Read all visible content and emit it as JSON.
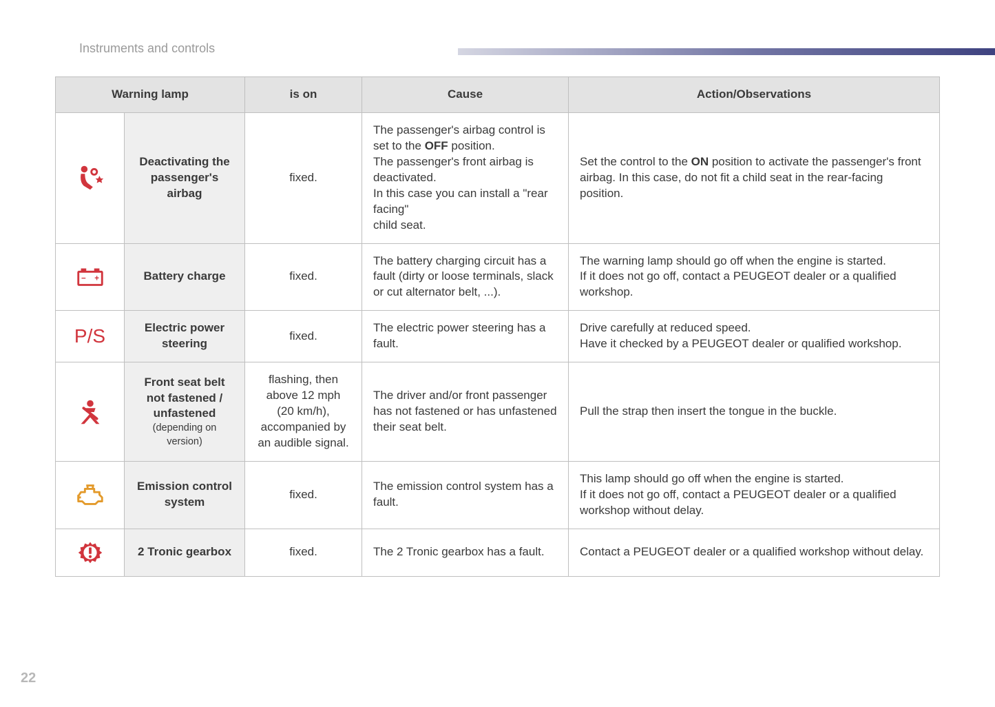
{
  "section_title": "Instruments and controls",
  "page_number": "22",
  "colors": {
    "section_title": "#9a9a9a",
    "border": "#bfbfbf",
    "header_bg": "#e3e3e3",
    "name_bg": "#efefef",
    "text": "#3a3a3a",
    "lamp_red": "#d1353d",
    "lamp_amber": "#e39a2b",
    "stripe_start": "#d5d6e2",
    "stripe_mid": "#7275a4",
    "stripe_end": "#3f4380",
    "page_num": "#b8b8b8"
  },
  "table": {
    "headers": {
      "warning_lamp": "Warning lamp",
      "is_on": "is on",
      "cause": "Cause",
      "action": "Action/Observations"
    },
    "rows": [
      {
        "icon": "airbag-off",
        "icon_color": "#d1353d",
        "name_html": "Deactivating the passenger's airbag",
        "is_on": "fixed.",
        "cause_html": "The passenger's airbag control is set to the <b>OFF</b> position.<br>The passenger's front airbag is deactivated.<br>In this case you can install a \"rear facing\"<br>child seat.",
        "action_html": "Set the control to the <b>ON</b> position to activate the passenger's front airbag. In this case, do not fit a child seat in the rear-facing position."
      },
      {
        "icon": "battery",
        "icon_color": "#d1353d",
        "name_html": "Battery charge",
        "is_on": "fixed.",
        "cause_html": "The battery charging circuit has a fault (dirty or loose terminals, slack or cut alternator belt, ...).",
        "action_html": "The warning lamp should go off when the engine is started.<br>If it does not go off, contact a PEUGEOT dealer or a qualified workshop."
      },
      {
        "icon": "ps",
        "icon_color": "#d1353d",
        "name_html": "Electric power steering",
        "is_on": "fixed.",
        "cause_html": "The electric power steering has a fault.",
        "action_html": "Drive carefully at reduced speed.<br>Have it checked by a PEUGEOT dealer or qualified workshop."
      },
      {
        "icon": "seatbelt",
        "icon_color": "#d1353d",
        "name_html": "Front seat belt not fastened / unfastened<span class=\"sub\">(depending on version)</span>",
        "is_on": "flashing, then above 12 mph (20 km/h), accompanied by an audible signal.",
        "cause_html": "The driver and/or front passenger has not fastened or has unfastened their seat belt.",
        "action_html": "Pull the strap then insert the tongue in the buckle."
      },
      {
        "icon": "engine",
        "icon_color": "#e39a2b",
        "name_html": "Emission control system",
        "is_on": "fixed.",
        "cause_html": "The emission control system has a fault.",
        "action_html": "This lamp should go off when the engine is started.<br>If it does not go off, contact a PEUGEOT dealer or a qualified workshop without delay."
      },
      {
        "icon": "gear",
        "icon_color": "#d1353d",
        "name_html": "2 Tronic gearbox",
        "is_on": "fixed.",
        "cause_html": "The 2 Tronic gearbox has a fault.",
        "action_html": "Contact a PEUGEOT dealer or a qualified workshop without delay."
      }
    ]
  }
}
